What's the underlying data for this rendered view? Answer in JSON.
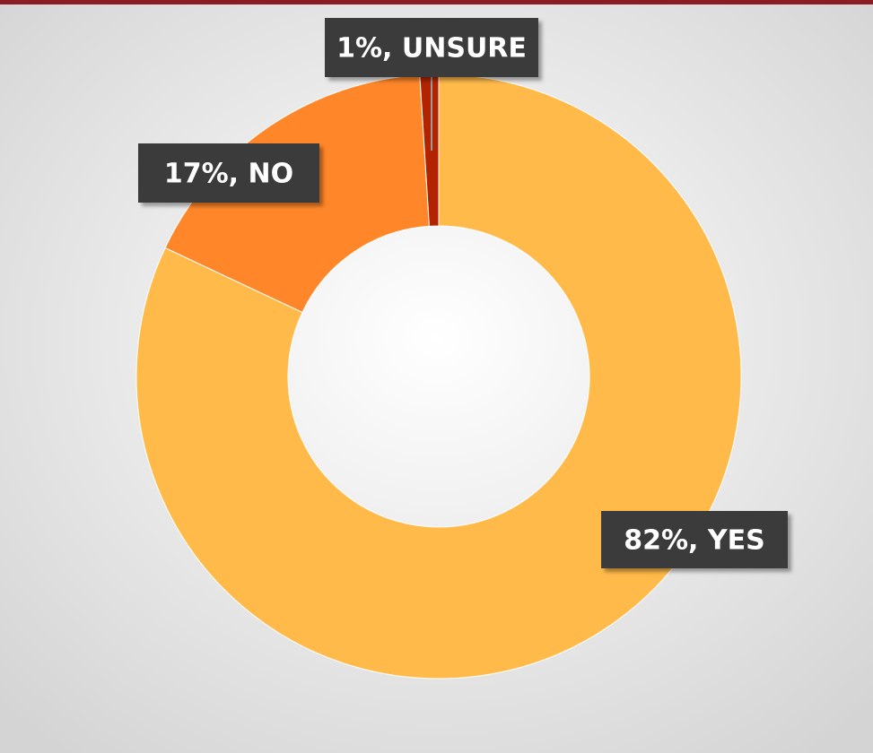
{
  "chart_data": {
    "type": "donut",
    "values": [
      82,
      17,
      1
    ],
    "value_labels": [
      "82%, YES",
      "17%, NO",
      "1%, UNSURE"
    ],
    "colors": [
      "#FFBA4A",
      "#FF8629",
      "#B22300"
    ]
  }
}
